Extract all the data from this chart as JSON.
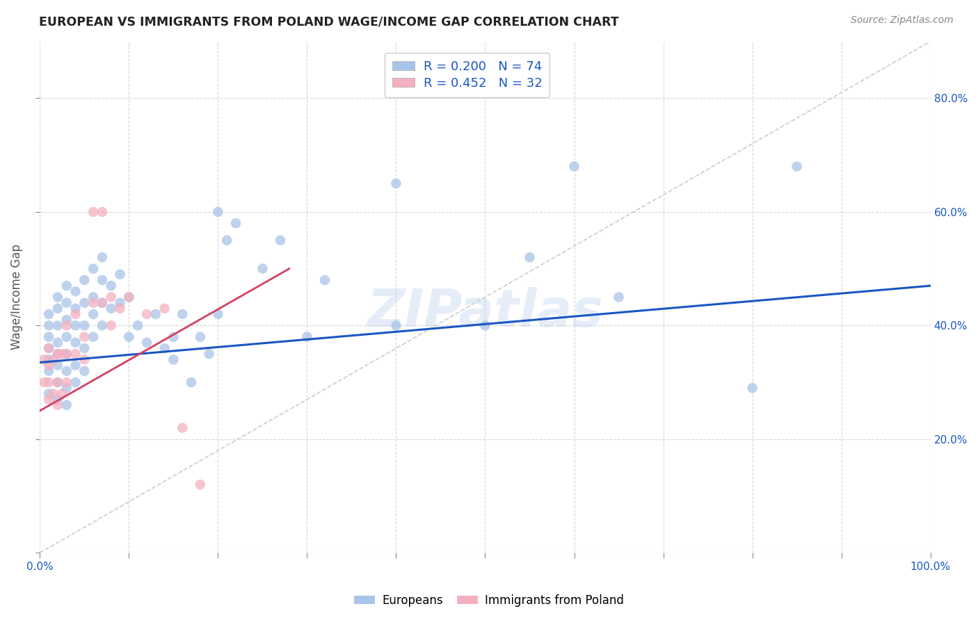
{
  "title": "EUROPEAN VS IMMIGRANTS FROM POLAND WAGE/INCOME GAP CORRELATION CHART",
  "source": "Source: ZipAtlas.com",
  "ylabel": "Wage/Income Gap",
  "xlim": [
    0.0,
    1.0
  ],
  "ylim": [
    0.0,
    0.9
  ],
  "xticks": [
    0.0,
    0.1,
    0.2,
    0.3,
    0.4,
    0.5,
    0.6,
    0.7,
    0.8,
    0.9,
    1.0
  ],
  "yticks": [
    0.0,
    0.2,
    0.4,
    0.6,
    0.8
  ],
  "xticklabels_show": [
    "0.0%",
    "",
    "",
    "",
    "",
    "",
    "",
    "",
    "",
    "",
    "100.0%"
  ],
  "yticklabels_left": [
    "",
    "",
    "",
    "",
    ""
  ],
  "yticklabels_right": [
    "",
    "20.0%",
    "40.0%",
    "60.0%",
    "80.0%"
  ],
  "europeans_color": "#a8c4e8",
  "poland_color": "#f4b0c0",
  "trendline_euro_color": "#1a56c4",
  "trendline_poland_color": "#d44060",
  "diagonal_color": "#cccccc",
  "R_euro": 0.2,
  "N_euro": 74,
  "R_poland": 0.452,
  "N_poland": 32,
  "background_color": "#ffffff",
  "grid_color": "#cccccc",
  "watermark": "ZIPatlas",
  "euro_trendline": [
    0.0,
    1.0,
    0.335,
    0.47
  ],
  "poland_trendline": [
    0.0,
    0.28,
    0.25,
    0.5
  ],
  "diagonal_line": [
    0.0,
    1.0,
    0.0,
    0.9
  ],
  "europeans_x": [
    0.01,
    0.01,
    0.01,
    0.01,
    0.01,
    0.01,
    0.01,
    0.02,
    0.02,
    0.02,
    0.02,
    0.02,
    0.02,
    0.02,
    0.02,
    0.03,
    0.03,
    0.03,
    0.03,
    0.03,
    0.03,
    0.03,
    0.03,
    0.04,
    0.04,
    0.04,
    0.04,
    0.04,
    0.04,
    0.05,
    0.05,
    0.05,
    0.05,
    0.05,
    0.06,
    0.06,
    0.06,
    0.06,
    0.07,
    0.07,
    0.07,
    0.07,
    0.08,
    0.08,
    0.09,
    0.09,
    0.1,
    0.1,
    0.11,
    0.12,
    0.13,
    0.14,
    0.15,
    0.15,
    0.16,
    0.17,
    0.18,
    0.19,
    0.2,
    0.2,
    0.21,
    0.22,
    0.25,
    0.27,
    0.3,
    0.32,
    0.4,
    0.4,
    0.5,
    0.55,
    0.6,
    0.65,
    0.8,
    0.85
  ],
  "europeans_y": [
    0.28,
    0.32,
    0.34,
    0.36,
    0.38,
    0.4,
    0.42,
    0.27,
    0.3,
    0.33,
    0.35,
    0.37,
    0.4,
    0.43,
    0.45,
    0.26,
    0.29,
    0.32,
    0.35,
    0.38,
    0.41,
    0.44,
    0.47,
    0.3,
    0.33,
    0.37,
    0.4,
    0.43,
    0.46,
    0.32,
    0.36,
    0.4,
    0.44,
    0.48,
    0.38,
    0.42,
    0.45,
    0.5,
    0.4,
    0.44,
    0.48,
    0.52,
    0.43,
    0.47,
    0.44,
    0.49,
    0.38,
    0.45,
    0.4,
    0.37,
    0.42,
    0.36,
    0.34,
    0.38,
    0.42,
    0.3,
    0.38,
    0.35,
    0.42,
    0.6,
    0.55,
    0.58,
    0.5,
    0.55,
    0.38,
    0.48,
    0.4,
    0.65,
    0.4,
    0.52,
    0.68,
    0.45,
    0.29,
    0.68
  ],
  "poland_x": [
    0.005,
    0.005,
    0.01,
    0.01,
    0.01,
    0.01,
    0.015,
    0.015,
    0.02,
    0.02,
    0.02,
    0.025,
    0.025,
    0.03,
    0.03,
    0.03,
    0.04,
    0.04,
    0.05,
    0.05,
    0.06,
    0.06,
    0.07,
    0.07,
    0.08,
    0.08,
    0.09,
    0.1,
    0.12,
    0.14,
    0.16,
    0.18
  ],
  "poland_y": [
    0.3,
    0.34,
    0.27,
    0.3,
    0.33,
    0.36,
    0.28,
    0.34,
    0.26,
    0.3,
    0.35,
    0.28,
    0.35,
    0.3,
    0.35,
    0.4,
    0.35,
    0.42,
    0.34,
    0.38,
    0.44,
    0.6,
    0.44,
    0.6,
    0.4,
    0.45,
    0.43,
    0.45,
    0.42,
    0.43,
    0.22,
    0.12
  ]
}
